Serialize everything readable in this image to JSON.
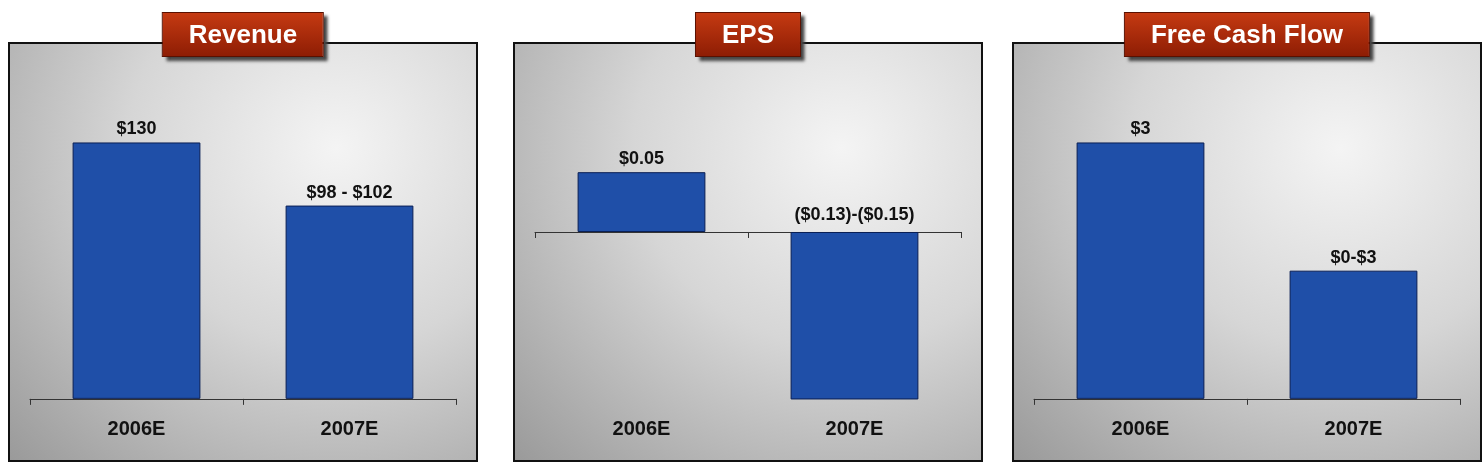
{
  "chart_data": [
    {
      "type": "bar",
      "title": "Revenue",
      "categories": [
        "2006E",
        "2007E"
      ],
      "values": [
        130,
        98
      ],
      "value_labels": [
        "$130",
        "$98 - $102"
      ],
      "color": "#1f4fa8"
    },
    {
      "type": "bar",
      "title": "EPS",
      "categories": [
        "2006E",
        "2007E"
      ],
      "values": [
        0.05,
        -0.14
      ],
      "value_labels": [
        "$0.05",
        "($0.13)-($0.15)"
      ],
      "color": "#1f4fa8"
    },
    {
      "type": "bar",
      "title": "Free Cash Flow",
      "categories": [
        "2006E",
        "2007E"
      ],
      "values": [
        3,
        1.5
      ],
      "value_labels": [
        "$3",
        "$0-$3"
      ],
      "color": "#1f4fa8"
    }
  ]
}
